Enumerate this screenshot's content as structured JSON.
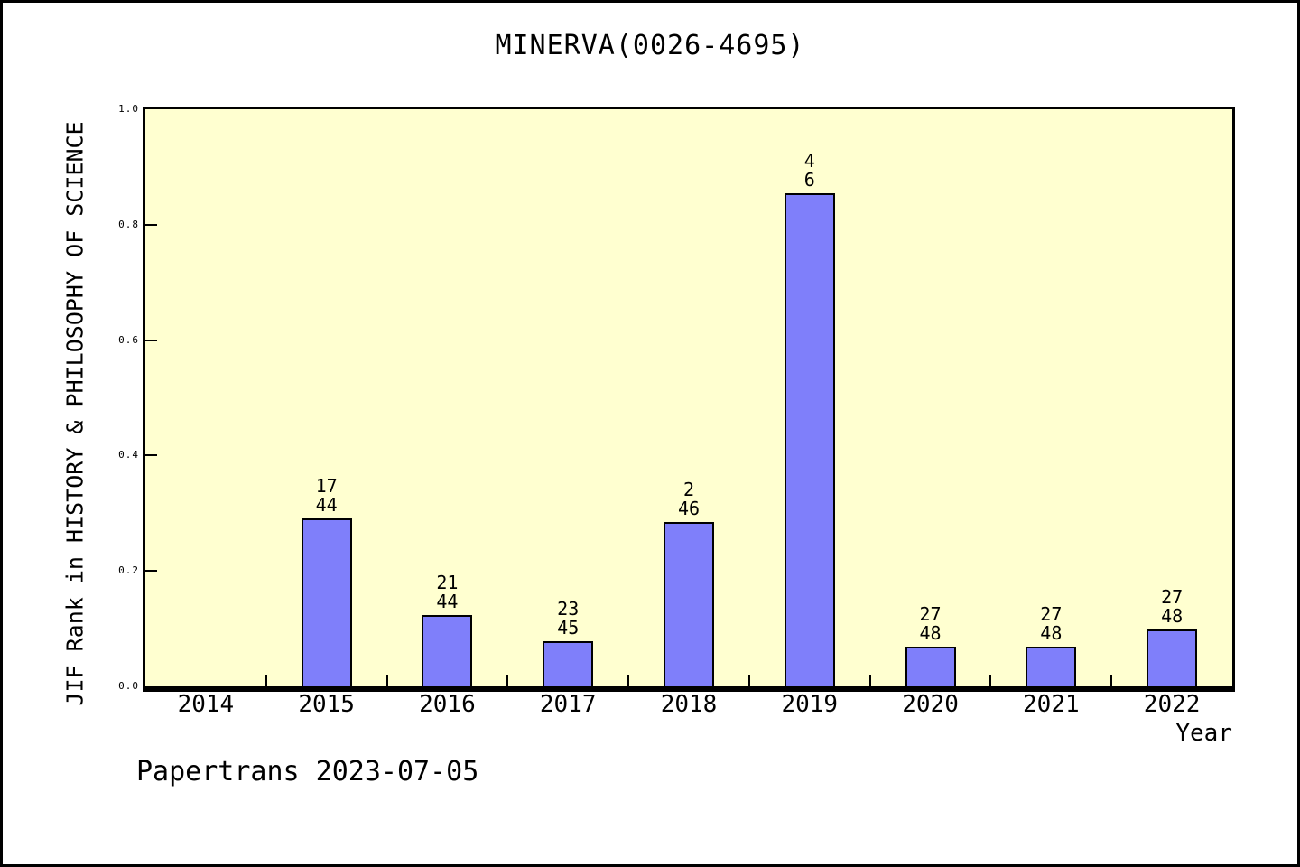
{
  "title": "MINERVA(0026-4695)",
  "footer": "Papertrans 2023-07-05",
  "colors": {
    "plot_background": "#FFFFD0",
    "bar_fill": "#7F7FFA",
    "frame": "#000000",
    "text": "#000000"
  },
  "chart_data": {
    "type": "bar",
    "title": "MINERVA(0026-4695)",
    "xlabel": "Year",
    "ylabel": "JIF Rank in HISTORY & PHILOSOPHY OF SCIENCE",
    "ylim": [
      0.0,
      1.0
    ],
    "ytick_labels": [
      "0.0",
      "0.2",
      "0.4",
      "0.6",
      "0.8",
      "1.0"
    ],
    "yticks": [
      0.0,
      0.2,
      0.4,
      0.6,
      0.8,
      1.0
    ],
    "grid": false,
    "legend_position": "none",
    "categories": [
      "2014",
      "2015",
      "2016",
      "2017",
      "2018",
      "2019",
      "2020",
      "2021",
      "2022"
    ],
    "bars": [
      {
        "year": "2014",
        "value": null,
        "rank": null,
        "total": null
      },
      {
        "year": "2015",
        "value": 0.291,
        "rank": "17",
        "total": "44"
      },
      {
        "year": "2016",
        "value": 0.123,
        "rank": "21",
        "total": "44"
      },
      {
        "year": "2017",
        "value": 0.079,
        "rank": "23",
        "total": "45"
      },
      {
        "year": "2018",
        "value": 0.285,
        "rank": "2",
        "total": "46"
      },
      {
        "year": "2019",
        "value": 0.854,
        "rank": "4",
        "total": "6"
      },
      {
        "year": "2020",
        "value": 0.069,
        "rank": "27",
        "total": "48"
      },
      {
        "year": "2021",
        "value": 0.069,
        "rank": "27",
        "total": "48"
      },
      {
        "year": "2022",
        "value": 0.098,
        "rank": "27",
        "total": "48"
      }
    ]
  }
}
